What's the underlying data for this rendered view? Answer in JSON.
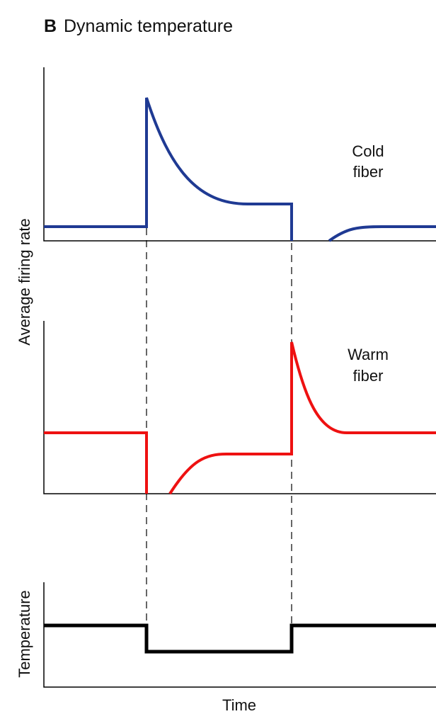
{
  "panel": {
    "letter": "B",
    "title": "Dynamic temperature"
  },
  "traces": [
    {
      "label": [
        "Cold",
        "fiber"
      ]
    },
    {
      "label": [
        "Warm",
        "fiber"
      ]
    }
  ],
  "axes": {
    "firing_rate_label": "Average firing rate",
    "temperature_label": "Temperature",
    "time_label": "Time"
  }
}
